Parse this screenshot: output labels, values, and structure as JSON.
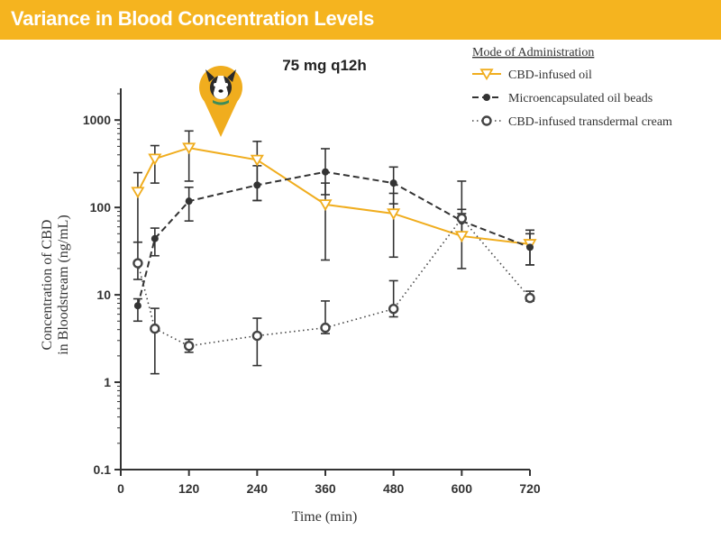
{
  "header": {
    "title": "Variance in Blood Concentration Levels"
  },
  "colors": {
    "banner": "#f5b41f",
    "oil": "#f0ad1e",
    "beads": "#333333",
    "cream": "#444444"
  },
  "icons": {
    "marker": "dog-face-icon"
  },
  "chart_data": {
    "type": "line",
    "title": "75 mg q12h",
    "xlabel": "Time (min)",
    "ylabel": [
      "Concentration of CBD",
      "in Bloodstream (ng/mL)"
    ],
    "yscale": "log",
    "xlim": [
      0,
      720
    ],
    "ylim": [
      0.1,
      2000
    ],
    "x_ticks": [
      0,
      120,
      240,
      360,
      480,
      600,
      720
    ],
    "y_ticks": [
      {
        "value": 0.1,
        "label": "0.1"
      },
      {
        "value": 1,
        "label": "1"
      },
      {
        "value": 10,
        "label": "10"
      },
      {
        "value": 100,
        "label": "100"
      },
      {
        "value": 1000,
        "label": "1000"
      }
    ],
    "grid": false,
    "legend": {
      "title": "Mode of Administration",
      "position": "top-right",
      "entries": [
        "CBD-infused oil",
        "Microencapsulated oil beads",
        "CBD-infused transdermal cream"
      ]
    },
    "series": [
      {
        "name": "CBD-infused oil",
        "style": "solid",
        "marker": "triangle-down-open",
        "x": [
          30,
          60,
          120,
          240,
          360,
          480,
          600,
          720
        ],
        "y": [
          150,
          360,
          480,
          350,
          108,
          85,
          47,
          38
        ],
        "err_low": [
          40,
          190,
          200,
          120,
          25,
          27,
          20,
          22
        ],
        "err_high": [
          250,
          510,
          750,
          570,
          190,
          145,
          200,
          55
        ]
      },
      {
        "name": "Microencapsulated oil beads",
        "style": "dashed",
        "marker": "circle-filled",
        "x": [
          30,
          60,
          120,
          240,
          360,
          480,
          600,
          720
        ],
        "y": [
          7.5,
          44,
          118,
          180,
          255,
          190,
          70,
          35
        ],
        "err_low": [
          5,
          28,
          70,
          120,
          140,
          110,
          50,
          22
        ],
        "err_high": [
          9,
          58,
          170,
          300,
          470,
          290,
          85,
          50
        ]
      },
      {
        "name": "CBD-infused transdermal cream",
        "style": "dotted",
        "marker": "circle-open",
        "x": [
          30,
          60,
          120,
          240,
          360,
          480,
          600,
          720
        ],
        "y": [
          23,
          4.1,
          2.6,
          3.4,
          4.2,
          6.9,
          75,
          9.2
        ],
        "err_low": [
          15,
          1.25,
          2.2,
          1.55,
          3.6,
          5.6,
          50,
          8.5
        ],
        "err_high": [
          40,
          7,
          3.1,
          5.4,
          8.5,
          14.5,
          95,
          11
        ]
      }
    ]
  }
}
